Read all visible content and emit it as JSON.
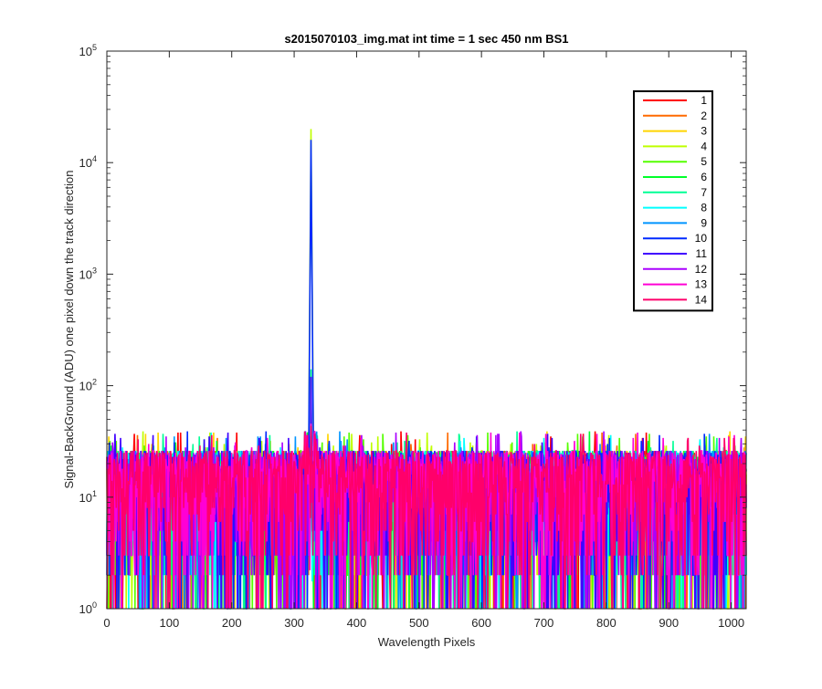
{
  "chart_data": {
    "type": "line",
    "title": "s2015070103_img.mat int time = 1 sec  450 nm BS1",
    "xlabel": "Wavelength Pixels",
    "ylabel": "Signal-BackGround (ADU) one pixel down the track direction",
    "xlim": [
      0,
      1024
    ],
    "ylim": [
      1,
      100000
    ],
    "yscale": "log",
    "xticks": [
      0,
      100,
      200,
      300,
      400,
      500,
      600,
      700,
      800,
      900,
      1000
    ],
    "xtick_labels": [
      "0",
      "100",
      "200",
      "300",
      "400",
      "500",
      "600",
      "700",
      "800",
      "900",
      "1000"
    ],
    "yticks": [
      1,
      10,
      100,
      1000,
      10000,
      100000
    ],
    "ytick_base": "10",
    "ytick_exponents": [
      "0",
      "1",
      "2",
      "3",
      "4",
      "5"
    ],
    "grid": false,
    "legend_position": "top-right",
    "noise_floor_range": [
      1,
      40
    ],
    "peak": {
      "x": 327,
      "values": [
        {
          "series": "4",
          "y": 20000
        },
        {
          "series": "10",
          "y": 16000
        },
        {
          "series": "11",
          "y": 120
        },
        {
          "series": "7",
          "y": 140
        }
      ]
    },
    "series": [
      {
        "name": "1",
        "color": "#ff0000"
      },
      {
        "name": "2",
        "color": "#ff6a00"
      },
      {
        "name": "3",
        "color": "#ffd500"
      },
      {
        "name": "4",
        "color": "#bfff00"
      },
      {
        "name": "5",
        "color": "#55ff00"
      },
      {
        "name": "6",
        "color": "#00ff2a"
      },
      {
        "name": "7",
        "color": "#00ff95"
      },
      {
        "name": "8",
        "color": "#00ffff"
      },
      {
        "name": "9",
        "color": "#0095ff"
      },
      {
        "name": "10",
        "color": "#002aff"
      },
      {
        "name": "11",
        "color": "#4000ff"
      },
      {
        "name": "12",
        "color": "#aa00ff"
      },
      {
        "name": "13",
        "color": "#ff00d5"
      },
      {
        "name": "14",
        "color": "#ff006a"
      }
    ]
  }
}
